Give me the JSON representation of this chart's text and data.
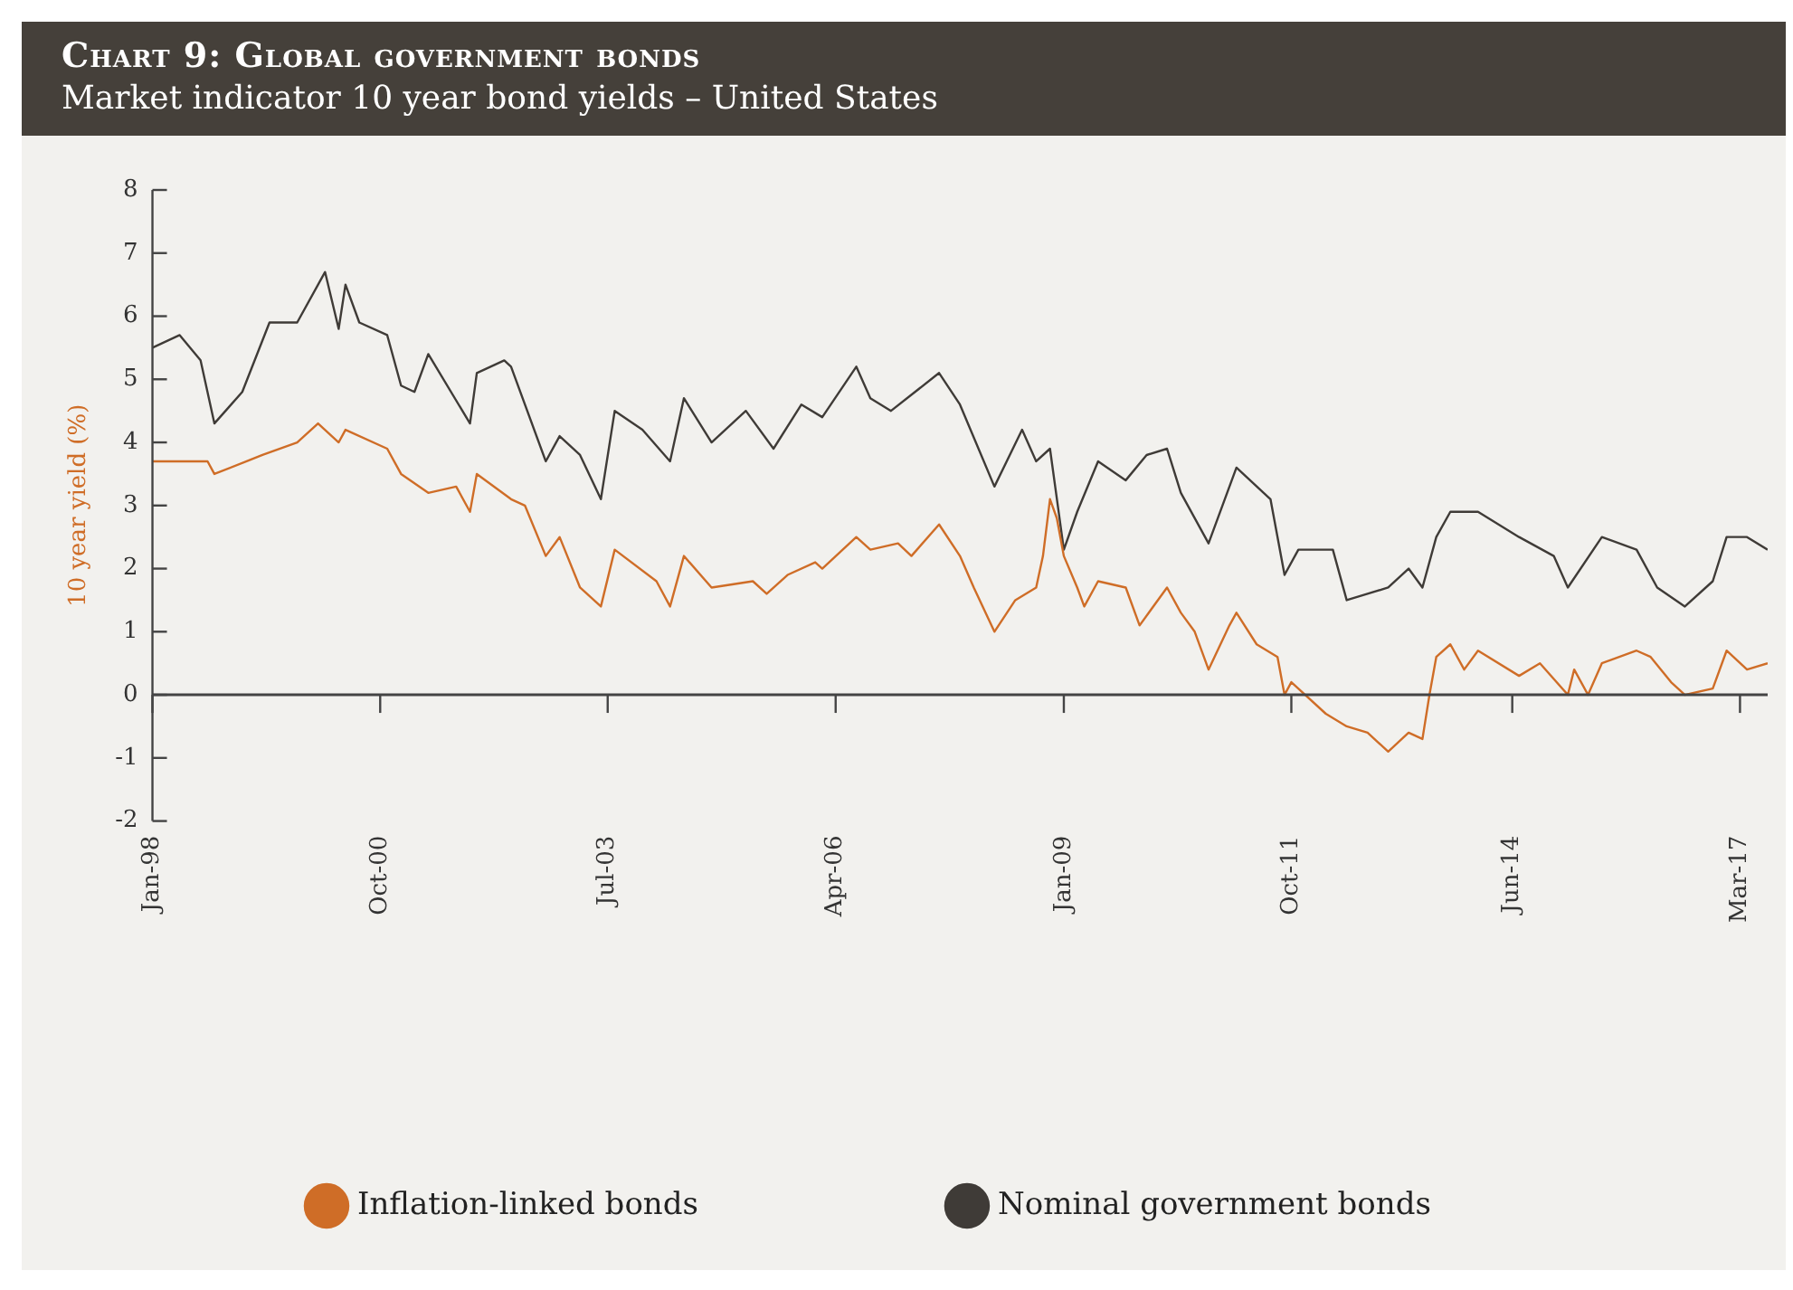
{
  "chart_data": {
    "type": "line",
    "title": "Chart 9: Global government bonds",
    "subtitle": "Market indicator 10 year bond yields – United States",
    "ylabel": "10 year yield (%)",
    "xlim": [
      "1998-01",
      "2017-07"
    ],
    "xticks": [
      {
        "value": "1998-01",
        "label": "Jan-98"
      },
      {
        "value": "2000-10",
        "label": "Oct-00"
      },
      {
        "value": "2003-07",
        "label": "Jul-03"
      },
      {
        "value": "2006-04",
        "label": "Apr-06"
      },
      {
        "value": "2009-01",
        "label": "Jan-09"
      },
      {
        "value": "2011-10",
        "label": "Oct-11"
      },
      {
        "value": "2014-06",
        "label": "Jun-14"
      },
      {
        "value": "2017-03",
        "label": "Mar-17"
      }
    ],
    "ylim": [
      -2,
      8
    ],
    "yticks": [
      -2,
      -1,
      0,
      1,
      2,
      3,
      4,
      5,
      6,
      7,
      8
    ],
    "legend": "bottom",
    "series": [
      {
        "name": "Inflation-linked bonds",
        "color": "#cf6d27",
        "x": [
          "1998-01",
          "1998-09",
          "1998-10",
          "1999-05",
          "1999-10",
          "2000-01",
          "2000-04",
          "2000-05",
          "2000-11",
          "2001-01",
          "2001-05",
          "2001-09",
          "2001-11",
          "2001-12",
          "2002-05",
          "2002-07",
          "2002-10",
          "2002-12",
          "2003-03",
          "2003-06",
          "2003-08",
          "2004-02",
          "2004-04",
          "2004-06",
          "2004-10",
          "2005-04",
          "2005-06",
          "2005-09",
          "2006-01",
          "2006-02",
          "2006-07",
          "2006-09",
          "2007-01",
          "2007-03",
          "2007-07",
          "2007-10",
          "2007-12",
          "2008-03",
          "2008-06",
          "2008-09",
          "2008-10",
          "2008-11",
          "2008-12",
          "2009-01",
          "2009-03",
          "2009-04",
          "2009-06",
          "2009-10",
          "2009-12",
          "2010-04",
          "2010-06",
          "2010-08",
          "2010-10",
          "2011-01",
          "2011-02",
          "2011-05",
          "2011-08",
          "2011-09",
          "2011-10",
          "2012-03",
          "2012-06",
          "2012-09",
          "2012-12",
          "2013-03",
          "2013-05",
          "2013-06",
          "2013-07",
          "2013-09",
          "2013-11",
          "2014-01",
          "2014-07",
          "2014-10",
          "2015-02",
          "2015-03",
          "2015-05",
          "2015-07",
          "2015-12",
          "2016-02",
          "2016-05",
          "2016-07",
          "2016-11",
          "2017-01",
          "2017-04",
          "2017-07"
        ],
        "values": [
          3.7,
          3.7,
          3.5,
          3.8,
          4.0,
          4.3,
          4.0,
          4.2,
          3.9,
          3.5,
          3.2,
          3.3,
          2.9,
          3.5,
          3.1,
          3.0,
          2.2,
          2.5,
          1.7,
          1.4,
          2.3,
          1.8,
          1.4,
          2.2,
          1.7,
          1.8,
          1.6,
          1.9,
          2.1,
          2.0,
          2.5,
          2.3,
          2.4,
          2.2,
          2.7,
          2.2,
          1.7,
          1.0,
          1.5,
          1.7,
          2.2,
          3.1,
          2.8,
          2.2,
          1.7,
          1.4,
          1.8,
          1.7,
          1.1,
          1.7,
          1.3,
          1.0,
          0.4,
          1.1,
          1.3,
          0.8,
          0.6,
          0.0,
          0.2,
          -0.3,
          -0.5,
          -0.6,
          -0.9,
          -0.6,
          -0.7,
          0.0,
          0.6,
          0.8,
          0.4,
          0.7,
          0.3,
          0.5,
          0.0,
          0.4,
          0.0,
          0.5,
          0.7,
          0.6,
          0.2,
          0.0,
          0.1,
          0.7,
          0.4,
          0.5
        ]
      },
      {
        "name": "Nominal government bonds",
        "color": "#3f3b37",
        "x": [
          "1998-01",
          "1998-05",
          "1998-08",
          "1998-10",
          "1999-02",
          "1999-06",
          "1999-10",
          "2000-02",
          "2000-04",
          "2000-05",
          "2000-07",
          "2000-11",
          "2001-01",
          "2001-03",
          "2001-05",
          "2001-11",
          "2001-12",
          "2002-04",
          "2002-05",
          "2002-10",
          "2002-12",
          "2003-03",
          "2003-06",
          "2003-08",
          "2003-12",
          "2004-04",
          "2004-06",
          "2004-10",
          "2005-03",
          "2005-07",
          "2005-11",
          "2006-02",
          "2006-07",
          "2006-09",
          "2006-12",
          "2007-07",
          "2007-10",
          "2008-03",
          "2008-07",
          "2008-09",
          "2008-11",
          "2009-01",
          "2009-03",
          "2009-06",
          "2009-10",
          "2010-01",
          "2010-04",
          "2010-06",
          "2010-10",
          "2011-02",
          "2011-07",
          "2011-09",
          "2011-11",
          "2012-04",
          "2012-06",
          "2012-12",
          "2013-03",
          "2013-05",
          "2013-07",
          "2013-09",
          "2014-01",
          "2014-07",
          "2014-12",
          "2015-02",
          "2015-07",
          "2015-12",
          "2016-03",
          "2016-07",
          "2016-11",
          "2017-01",
          "2017-04",
          "2017-07"
        ],
        "values": [
          5.5,
          5.7,
          5.3,
          4.3,
          4.8,
          5.9,
          5.9,
          6.7,
          5.8,
          6.5,
          5.9,
          5.7,
          4.9,
          4.8,
          5.4,
          4.3,
          5.1,
          5.3,
          5.2,
          3.7,
          4.1,
          3.8,
          3.1,
          4.5,
          4.2,
          3.7,
          4.7,
          4.0,
          4.5,
          3.9,
          4.6,
          4.4,
          5.2,
          4.7,
          4.5,
          5.1,
          4.6,
          3.3,
          4.2,
          3.7,
          3.9,
          2.3,
          2.9,
          3.7,
          3.4,
          3.8,
          3.9,
          3.2,
          2.4,
          3.6,
          3.1,
          1.9,
          2.3,
          2.3,
          1.5,
          1.7,
          2.0,
          1.7,
          2.5,
          2.9,
          2.9,
          2.5,
          2.2,
          1.7,
          2.5,
          2.3,
          1.7,
          1.4,
          1.8,
          2.5,
          2.5,
          2.3
        ]
      }
    ]
  }
}
